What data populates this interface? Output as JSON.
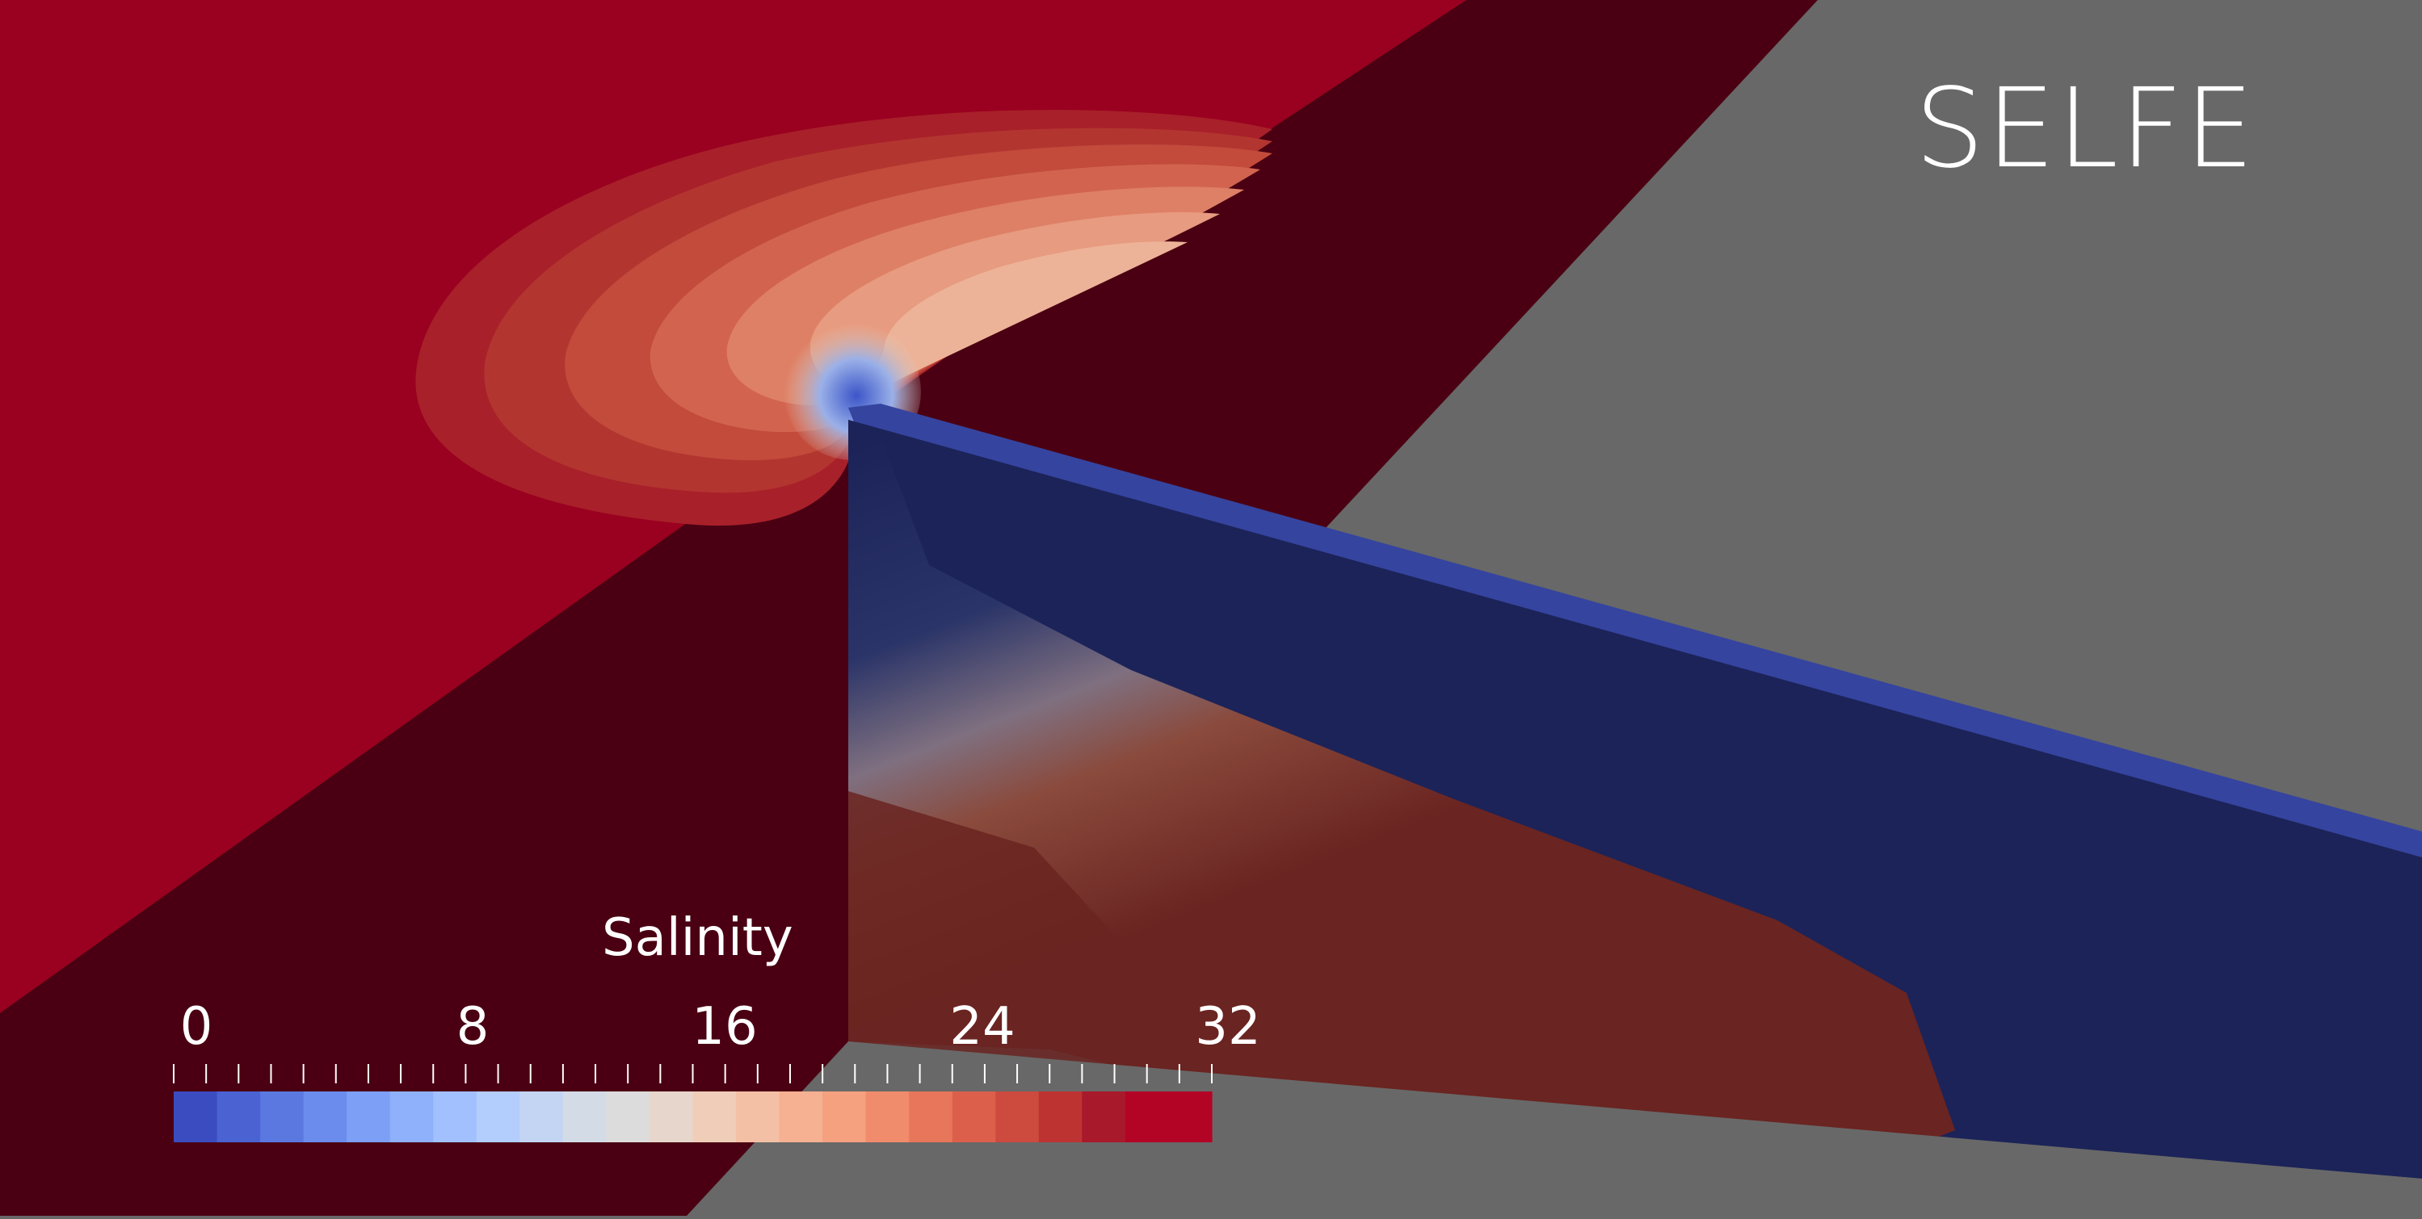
{
  "model_label": "SELFE",
  "colorbar": {
    "title": "Salinity",
    "range": [
      0,
      32
    ],
    "tick_labels": [
      "0",
      "8",
      "16",
      "24",
      "32"
    ],
    "tick_values": [
      0,
      8,
      16,
      24,
      32
    ],
    "bands": 24,
    "colors": [
      "#3b4cc0",
      "#4a62d2",
      "#5a78e0",
      "#6b8cec",
      "#7d9ff5",
      "#8fb1fb",
      "#a2c0fe",
      "#b3cdfd",
      "#c4d5f3",
      "#d3dbe7",
      "#dddcdc",
      "#e7d6cb",
      "#efcdb9",
      "#f4c0a5",
      "#f6b092",
      "#f5a07e",
      "#f08b6b",
      "#e8765a",
      "#dc5f4b",
      "#cd4a3e",
      "#bd3332",
      "#a8192b",
      "#b40426",
      "#b40426"
    ]
  },
  "scene_colors": {
    "ocean_surface": "#9a001f",
    "ocean_shadow": "#4a0012",
    "channel_fresh": "#1c2358",
    "channel_top": "#35449f",
    "background": "#686868"
  }
}
